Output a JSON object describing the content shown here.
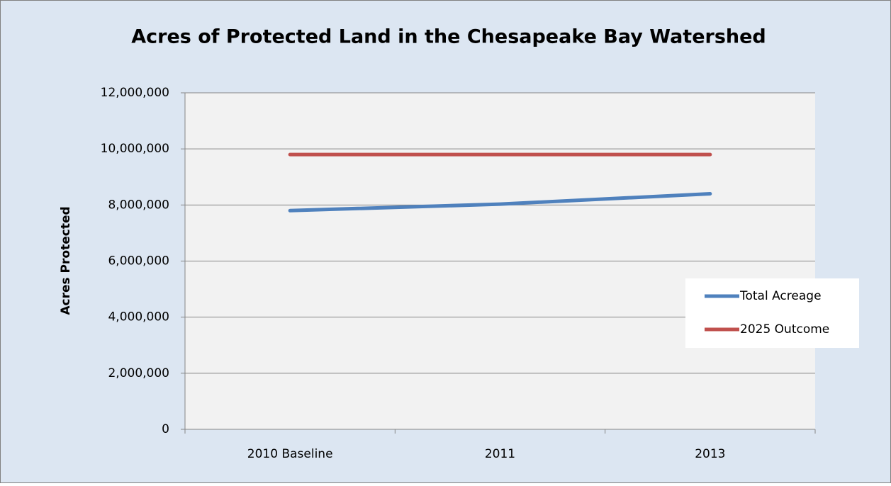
{
  "chart_data": {
    "type": "line",
    "title": "Acres of Protected Land in the Chesapeake Bay Watershed",
    "ylabel": "Acres Protected",
    "categories": [
      "2010 Baseline",
      "2011",
      "2013"
    ],
    "series": [
      {
        "name": "Total Acreage",
        "color": "#4f81bd",
        "values": [
          7800000,
          8030000,
          8400000
        ]
      },
      {
        "name": "2025 Outcome",
        "color": "#c0504d",
        "values": [
          9800000,
          9800000,
          9800000
        ]
      }
    ],
    "ylim": [
      0,
      12000000
    ],
    "yticks": [
      0,
      {
        "value": 2000000,
        "label": "2,000,000"
      },
      {
        "value": 4000000,
        "label": "4,000,000"
      },
      {
        "value": 6000000,
        "label": "6,000,000"
      },
      {
        "value": 8000000,
        "label": "8,000,000"
      },
      {
        "value": 10000000,
        "label": "10,000,000"
      },
      {
        "value": 12000000,
        "label": "12,000,000"
      }
    ],
    "grid": true,
    "legend": "right"
  }
}
